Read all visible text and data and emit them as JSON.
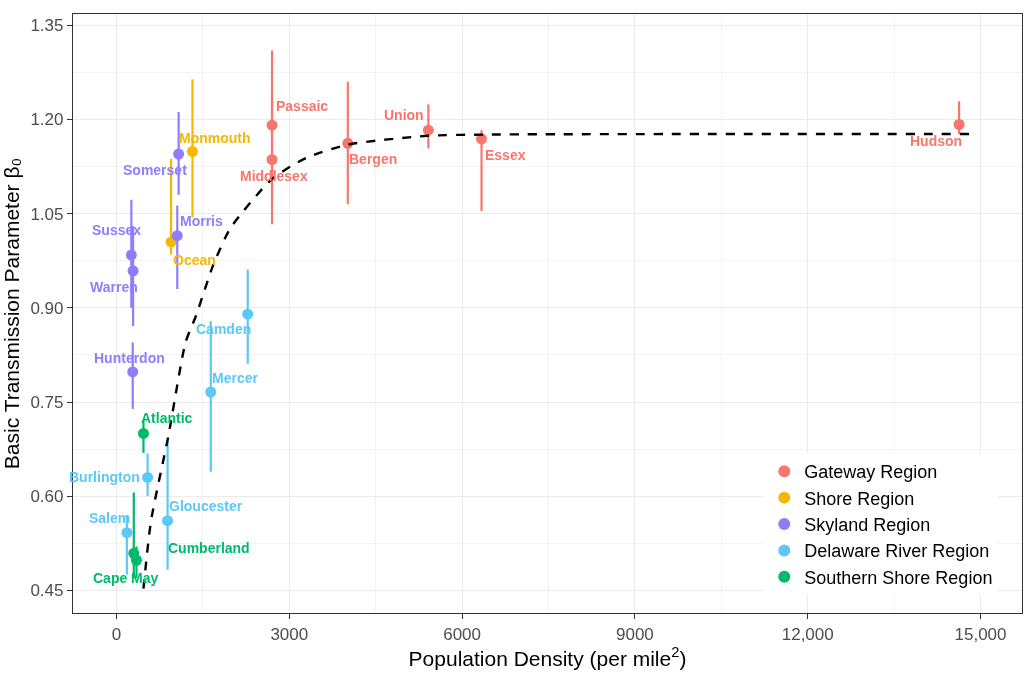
{
  "chart_data": {
    "type": "scatter",
    "xlabel": "Population Density (per mile$^{2}$)",
    "ylabel": "Basic Transmission Parameter β₀",
    "xlim": [
      -755,
      15720
    ],
    "ylim": [
      0.414,
      1.368
    ],
    "xticks": [
      0,
      3000,
      6000,
      9000,
      {
        "value": 12000,
        "label": "12,000"
      },
      {
        "value": 15000,
        "label": "15,000"
      }
    ],
    "yticks": [
      {
        "value": 0.45,
        "label": "0.45"
      },
      {
        "value": 0.6,
        "label": "0.60"
      },
      {
        "value": 0.75,
        "label": "0.75"
      },
      {
        "value": 0.9,
        "label": "0.90"
      },
      {
        "value": 1.05,
        "label": "1.05"
      },
      {
        "value": 1.2,
        "label": "1.20"
      },
      {
        "value": 1.35,
        "label": "1.35"
      }
    ],
    "grid": true,
    "legend": "bottom right",
    "marker": "circle",
    "series": [
      {
        "name": "Gateway Region",
        "color": "#f8766d",
        "x": [
          2700,
          2700,
          4016,
          5414,
          6337,
          14628
        ],
        "values": [
          1.191,
          1.136,
          1.162,
          1.183,
          1.169,
          1.192
        ],
        "errors": [
          [
            1.07,
            1.31
          ],
          [
            1.033,
            1.24
          ],
          [
            1.065,
            1.26
          ],
          [
            1.154,
            1.224
          ],
          [
            1.054,
            1.183
          ],
          [
            1.177,
            1.229
          ]
        ]
      },
      {
        "name": "Shore Region",
        "color": "#f5b800",
        "x": [
          1319,
          948
        ],
        "values": [
          1.149,
          1.005
        ],
        "errors": [
          [
            1.044,
            1.264
          ],
          [
            0.985,
            1.137
          ]
        ]
      },
      {
        "name": "Skyland Region",
        "color": "#8f7cff",
        "x": [
          1079,
          1055,
          258,
          288,
          282
        ],
        "values": [
          1.145,
          1.015,
          0.984,
          0.959,
          0.798
        ],
        "errors": [
          [
            1.08,
            1.212
          ],
          [
            0.93,
            1.063
          ],
          [
            0.9,
            1.072
          ],
          [
            0.871,
            1.03
          ],
          [
            0.739,
            0.845
          ]
        ]
      },
      {
        "name": "Delaware River Region",
        "color": "#5bc8f5",
        "x": [
          2278,
          1637,
          540,
          887,
          180
        ],
        "values": [
          0.89,
          0.766,
          0.63,
          0.561,
          0.542
        ],
        "errors": [
          [
            0.811,
            0.961
          ],
          [
            0.639,
            0.879
          ],
          [
            0.6,
            0.668
          ],
          [
            0.483,
            0.689
          ],
          [
            0.475,
            0.57
          ]
        ]
      },
      {
        "name": "Southern Shore Region",
        "color": "#00ba6b",
        "x": [
          468,
          300,
          347
        ],
        "values": [
          0.7,
          0.509,
          0.498
        ],
        "errors": [
          [
            0.669,
            0.721
          ],
          [
            0.469,
            0.606
          ],
          [
            0.47,
            0.52
          ]
        ]
      },
      {
        "type": "line",
        "color": "#000000",
        "line_style": "dashed",
        "marker": "none",
        "x": [
          468,
          600,
          899,
          1199,
          1379,
          1679,
          1978,
          2698,
          3297,
          4016,
          5396,
          6415,
          14838
        ],
        "values": [
          0.453,
          0.561,
          0.695,
          0.845,
          0.887,
          0.968,
          1.027,
          1.105,
          1.139,
          1.16,
          1.174,
          1.176,
          1.177
        ]
      }
    ],
    "annotations": [
      {
        "text": "Passaic",
        "x": 2700,
        "y": 1.191
      },
      {
        "text": "Middlesex",
        "x": 2700,
        "y": 1.136
      },
      {
        "text": "Bergen",
        "x": 4016,
        "y": 1.162
      },
      {
        "text": "Union",
        "x": 5414,
        "y": 1.183
      },
      {
        "text": "Essex",
        "x": 6337,
        "y": 1.169
      },
      {
        "text": "Hudson",
        "x": 14628,
        "y": 1.192
      },
      {
        "text": "Monmouth",
        "x": 1319,
        "y": 1.149
      },
      {
        "text": "Ocean",
        "x": 948,
        "y": 1.005
      },
      {
        "text": "Somerset",
        "x": 1079,
        "y": 1.145
      },
      {
        "text": "Morris",
        "x": 1055,
        "y": 1.015
      },
      {
        "text": "Sussex",
        "x": 258,
        "y": 0.984
      },
      {
        "text": "Warren",
        "x": 288,
        "y": 0.959
      },
      {
        "text": "Hunterdon",
        "x": 282,
        "y": 0.798
      },
      {
        "text": "Camden",
        "x": 2278,
        "y": 0.89
      },
      {
        "text": "Mercer",
        "x": 1637,
        "y": 0.766
      },
      {
        "text": "Atlantic",
        "x": 468,
        "y": 0.7
      },
      {
        "text": "Burlington",
        "x": 540,
        "y": 0.63
      },
      {
        "text": "Gloucester",
        "x": 887,
        "y": 0.561
      },
      {
        "text": "Salem",
        "x": 180,
        "y": 0.542
      },
      {
        "text": "Cumberland",
        "x": 300,
        "y": 0.509
      },
      {
        "text": "Cape May",
        "x": 347,
        "y": 0.498
      }
    ]
  }
}
